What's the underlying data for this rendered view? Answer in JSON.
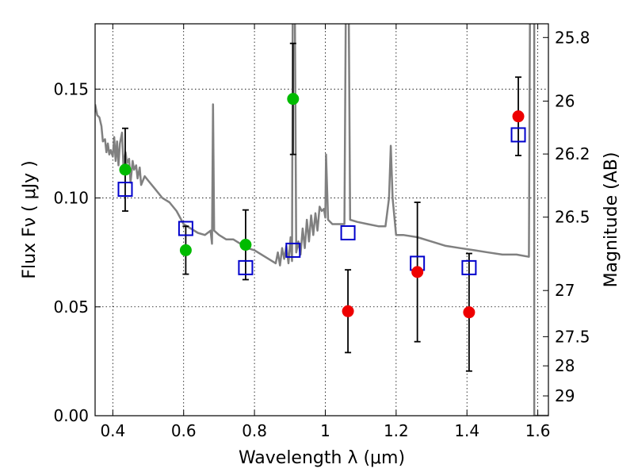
{
  "chart_data": {
    "type": "scatter",
    "title": "",
    "xlabel": "Wavelength  λ (μm)",
    "ylabel": "Flux  Fν  ( μJy )",
    "y2label": "Magnitude (AB)",
    "xlim": [
      0.35,
      1.63
    ],
    "ylim": [
      0.0,
      0.18
    ],
    "grid": true,
    "x_ticks": [
      0.4,
      0.6,
      0.8,
      1.0,
      1.2,
      1.4,
      1.6
    ],
    "x_tick_labels": [
      "0.4",
      "0.6",
      "0.8",
      "1",
      "1.2",
      "1.4",
      "1.6"
    ],
    "y_ticks": [
      0.0,
      0.05,
      0.1,
      0.15
    ],
    "y_tick_labels": [
      "0.00",
      "0.05",
      "0.10",
      "0.15"
    ],
    "mag_ticks": [
      {
        "label": "25.8",
        "flux": 0.1737
      },
      {
        "label": "26",
        "flux": 0.1445
      },
      {
        "label": "26.2",
        "flux": 0.1202
      },
      {
        "label": "26.5",
        "flux": 0.0912
      },
      {
        "label": "27",
        "flux": 0.0575
      },
      {
        "label": "27.5",
        "flux": 0.0363
      },
      {
        "label": "28",
        "flux": 0.0229
      },
      {
        "label": "29",
        "flux": 0.0091
      }
    ],
    "series": [
      {
        "color": "#00bb00",
        "marker": "circle",
        "points": [
          {
            "x": 0.435,
            "y": 0.113,
            "err": 0.019
          },
          {
            "x": 0.606,
            "y": 0.076,
            "err": 0.011
          },
          {
            "x": 0.775,
            "y": 0.0785,
            "err": 0.016
          },
          {
            "x": 0.909,
            "y": 0.1455,
            "err": 0.0255
          }
        ]
      },
      {
        "color": "#ee0000",
        "marker": "circle",
        "points": [
          {
            "x": 1.064,
            "y": 0.048,
            "err": 0.019
          },
          {
            "x": 1.26,
            "y": 0.066,
            "err": 0.032
          },
          {
            "x": 1.406,
            "y": 0.0475,
            "err": 0.027
          },
          {
            "x": 1.545,
            "y": 0.1375,
            "err": 0.018
          }
        ]
      },
      {
        "color": "#0000cc",
        "marker": "square-open",
        "points": [
          {
            "x": 0.435,
            "y": 0.104
          },
          {
            "x": 0.606,
            "y": 0.086
          },
          {
            "x": 0.775,
            "y": 0.068
          },
          {
            "x": 0.909,
            "y": 0.076
          },
          {
            "x": 1.064,
            "y": 0.084
          },
          {
            "x": 1.26,
            "y": 0.07
          },
          {
            "x": 1.406,
            "y": 0.068
          },
          {
            "x": 1.545,
            "y": 0.129
          }
        ]
      },
      {
        "color": "#808080",
        "marker": "line",
        "points": [
          [
            0.35,
            0.143
          ],
          [
            0.356,
            0.138
          ],
          [
            0.362,
            0.137
          ],
          [
            0.368,
            0.133
          ],
          [
            0.372,
            0.126
          ],
          [
            0.378,
            0.127
          ],
          [
            0.382,
            0.121
          ],
          [
            0.386,
            0.125
          ],
          [
            0.39,
            0.12
          ],
          [
            0.394,
            0.122
          ],
          [
            0.4,
            0.119
          ],
          [
            0.404,
            0.128
          ],
          [
            0.408,
            0.117
          ],
          [
            0.412,
            0.126
          ],
          [
            0.416,
            0.115
          ],
          [
            0.42,
            0.125
          ],
          [
            0.426,
            0.13
          ],
          [
            0.43,
            0.114
          ],
          [
            0.436,
            0.121
          ],
          [
            0.44,
            0.116
          ],
          [
            0.446,
            0.118
          ],
          [
            0.45,
            0.107
          ],
          [
            0.456,
            0.117
          ],
          [
            0.46,
            0.113
          ],
          [
            0.466,
            0.115
          ],
          [
            0.47,
            0.109
          ],
          [
            0.476,
            0.114
          ],
          [
            0.48,
            0.106
          ],
          [
            0.49,
            0.11
          ],
          [
            0.5,
            0.108
          ],
          [
            0.52,
            0.104
          ],
          [
            0.54,
            0.1
          ],
          [
            0.56,
            0.098
          ],
          [
            0.58,
            0.094
          ],
          [
            0.6,
            0.088
          ],
          [
            0.62,
            0.086
          ],
          [
            0.64,
            0.084
          ],
          [
            0.66,
            0.083
          ],
          [
            0.676,
            0.085
          ],
          [
            0.68,
            0.079
          ],
          [
            0.683,
            0.143
          ],
          [
            0.686,
            0.085
          ],
          [
            0.7,
            0.083
          ],
          [
            0.72,
            0.081
          ],
          [
            0.74,
            0.081
          ],
          [
            0.76,
            0.079
          ],
          [
            0.78,
            0.077
          ],
          [
            0.8,
            0.076
          ],
          [
            0.82,
            0.074
          ],
          [
            0.84,
            0.072
          ],
          [
            0.86,
            0.07
          ],
          [
            0.866,
            0.075
          ],
          [
            0.872,
            0.069
          ],
          [
            0.878,
            0.077
          ],
          [
            0.884,
            0.072
          ],
          [
            0.89,
            0.078
          ],
          [
            0.896,
            0.07
          ],
          [
            0.902,
            0.082
          ],
          [
            0.906,
            0.071
          ],
          [
            0.908,
            0.19
          ],
          [
            0.914,
            0.19
          ],
          [
            0.918,
            0.075
          ],
          [
            0.924,
            0.08
          ],
          [
            0.93,
            0.074
          ],
          [
            0.936,
            0.086
          ],
          [
            0.942,
            0.077
          ],
          [
            0.948,
            0.09
          ],
          [
            0.954,
            0.08
          ],
          [
            0.96,
            0.092
          ],
          [
            0.966,
            0.083
          ],
          [
            0.972,
            0.093
          ],
          [
            0.978,
            0.085
          ],
          [
            0.984,
            0.096
          ],
          [
            0.99,
            0.094
          ],
          [
            0.996,
            0.095
          ],
          [
            1.0,
            0.091
          ],
          [
            1.002,
            0.12
          ],
          [
            1.008,
            0.09
          ],
          [
            1.02,
            0.088
          ],
          [
            1.04,
            0.088
          ],
          [
            1.054,
            0.088
          ],
          [
            1.058,
            0.19
          ],
          [
            1.066,
            0.19
          ],
          [
            1.07,
            0.09
          ],
          [
            1.09,
            0.089
          ],
          [
            1.12,
            0.088
          ],
          [
            1.15,
            0.087
          ],
          [
            1.17,
            0.087
          ],
          [
            1.18,
            0.1
          ],
          [
            1.185,
            0.124
          ],
          [
            1.19,
            0.1
          ],
          [
            1.2,
            0.083
          ],
          [
            1.22,
            0.083
          ],
          [
            1.26,
            0.082
          ],
          [
            1.3,
            0.08
          ],
          [
            1.34,
            0.078
          ],
          [
            1.38,
            0.077
          ],
          [
            1.42,
            0.076
          ],
          [
            1.46,
            0.075
          ],
          [
            1.5,
            0.074
          ],
          [
            1.54,
            0.074
          ],
          [
            1.575,
            0.073
          ],
          [
            1.578,
            0.19
          ],
          [
            1.59,
            0.19
          ],
          [
            1.59,
            0.0
          ],
          [
            1.63,
            0.0
          ]
        ]
      }
    ]
  }
}
